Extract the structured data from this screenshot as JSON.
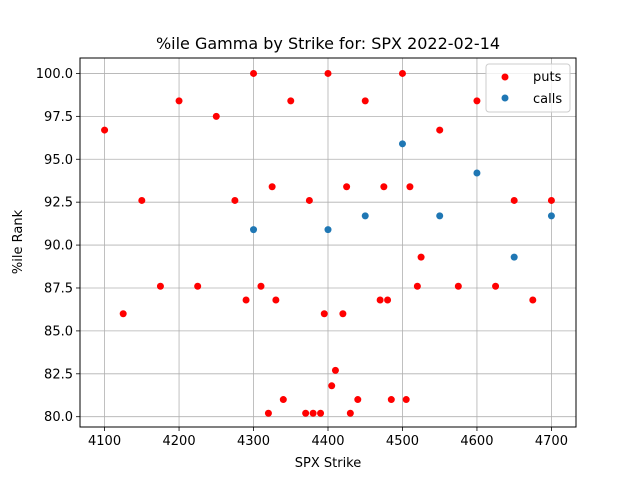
{
  "chart_data": {
    "type": "scatter",
    "title": "%ile Gamma by Strike for: SPX 2022-02-14",
    "xlabel": "SPX Strike",
    "ylabel": "%ile Rank",
    "xlim": [
      4067,
      4733
    ],
    "ylim": [
      79.4,
      100.9
    ],
    "xticks": [
      4100,
      4200,
      4300,
      4400,
      4500,
      4600,
      4700
    ],
    "yticks": [
      80.0,
      82.5,
      85.0,
      87.5,
      90.0,
      92.5,
      95.0,
      97.5,
      100.0
    ],
    "xtick_labels": [
      "4100",
      "4200",
      "4300",
      "4400",
      "4500",
      "4600",
      "4700"
    ],
    "ytick_labels": [
      "80.0",
      "82.5",
      "85.0",
      "87.5",
      "90.0",
      "92.5",
      "95.0",
      "97.5",
      "100.0"
    ],
    "grid": true,
    "legend_position": "top-right",
    "series": [
      {
        "name": "puts",
        "color": "#ff0000",
        "points": [
          {
            "x": 4100,
            "y": 96.7
          },
          {
            "x": 4125,
            "y": 86.0
          },
          {
            "x": 4150,
            "y": 92.6
          },
          {
            "x": 4175,
            "y": 87.6
          },
          {
            "x": 4200,
            "y": 98.4
          },
          {
            "x": 4225,
            "y": 87.6
          },
          {
            "x": 4250,
            "y": 97.5
          },
          {
            "x": 4275,
            "y": 92.6
          },
          {
            "x": 4290,
            "y": 86.8
          },
          {
            "x": 4300,
            "y": 100.0
          },
          {
            "x": 4310,
            "y": 87.6
          },
          {
            "x": 4320,
            "y": 80.2
          },
          {
            "x": 4325,
            "y": 93.4
          },
          {
            "x": 4330,
            "y": 86.8
          },
          {
            "x": 4340,
            "y": 81.0
          },
          {
            "x": 4350,
            "y": 98.4
          },
          {
            "x": 4370,
            "y": 80.2
          },
          {
            "x": 4375,
            "y": 92.6
          },
          {
            "x": 4380,
            "y": 80.2
          },
          {
            "x": 4390,
            "y": 80.2
          },
          {
            "x": 4395,
            "y": 86.0
          },
          {
            "x": 4400,
            "y": 100.0
          },
          {
            "x": 4405,
            "y": 81.8
          },
          {
            "x": 4410,
            "y": 82.7
          },
          {
            "x": 4420,
            "y": 86.0
          },
          {
            "x": 4425,
            "y": 93.4
          },
          {
            "x": 4430,
            "y": 80.2
          },
          {
            "x": 4440,
            "y": 81.0
          },
          {
            "x": 4450,
            "y": 98.4
          },
          {
            "x": 4470,
            "y": 86.8
          },
          {
            "x": 4475,
            "y": 93.4
          },
          {
            "x": 4480,
            "y": 86.8
          },
          {
            "x": 4485,
            "y": 81.0
          },
          {
            "x": 4500,
            "y": 100.0
          },
          {
            "x": 4505,
            "y": 81.0
          },
          {
            "x": 4510,
            "y": 93.4
          },
          {
            "x": 4520,
            "y": 87.6
          },
          {
            "x": 4525,
            "y": 89.3
          },
          {
            "x": 4550,
            "y": 96.7
          },
          {
            "x": 4575,
            "y": 87.6
          },
          {
            "x": 4600,
            "y": 98.4
          },
          {
            "x": 4625,
            "y": 87.6
          },
          {
            "x": 4650,
            "y": 92.6
          },
          {
            "x": 4675,
            "y": 86.8
          },
          {
            "x": 4700,
            "y": 92.6
          }
        ]
      },
      {
        "name": "calls",
        "color": "#1f77b4",
        "points": [
          {
            "x": 4300,
            "y": 90.9
          },
          {
            "x": 4400,
            "y": 90.9
          },
          {
            "x": 4450,
            "y": 91.7
          },
          {
            "x": 4500,
            "y": 95.9
          },
          {
            "x": 4550,
            "y": 91.7
          },
          {
            "x": 4600,
            "y": 94.2
          },
          {
            "x": 4650,
            "y": 89.3
          },
          {
            "x": 4700,
            "y": 91.7
          }
        ]
      }
    ]
  }
}
